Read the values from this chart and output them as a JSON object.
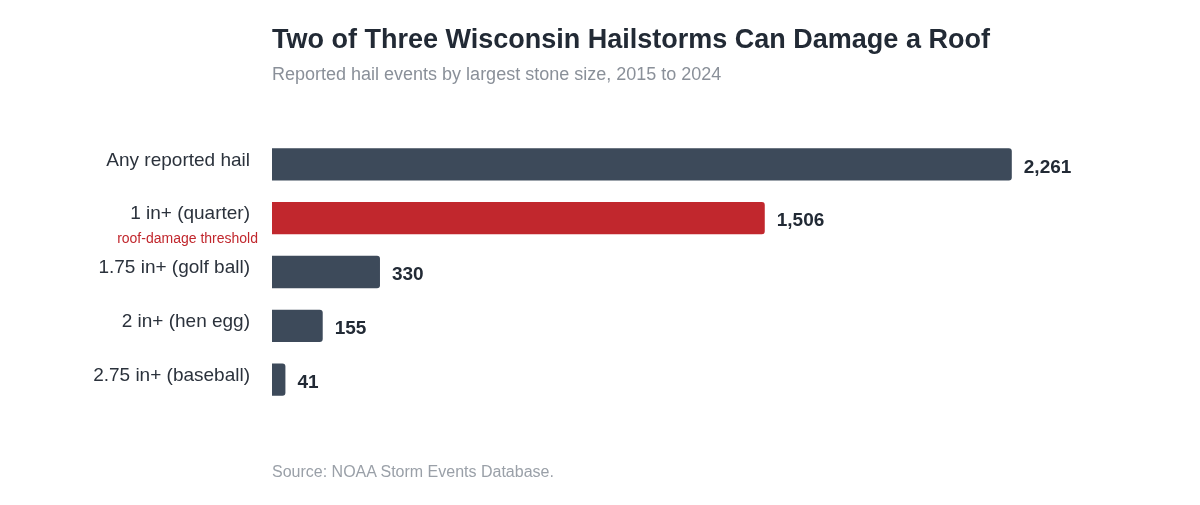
{
  "chart_data": {
    "type": "bar",
    "orientation": "horizontal",
    "title": "Two of Three Wisconsin Hailstorms Can Damage a Roof",
    "subtitle": "Reported hail events by largest stone size, 2015 to 2024",
    "categories": [
      "Any reported hail",
      "1 in+ (quarter)",
      "1.75 in+ (golf ball)",
      "2 in+ (hen egg)",
      "2.75 in+ (baseball)"
    ],
    "values": [
      2261,
      1506,
      330,
      155,
      41
    ],
    "colors": [
      "#3d4a5a",
      "#c1272d",
      "#3d4a5a",
      "#3d4a5a",
      "#3d4a5a"
    ],
    "value_labels": [
      "2,261",
      "1,506",
      "330",
      "155",
      "41"
    ],
    "legend": false,
    "annotations": [
      "roof-damage threshold",
      "Source: NOAA Storm Events Database."
    ]
  }
}
